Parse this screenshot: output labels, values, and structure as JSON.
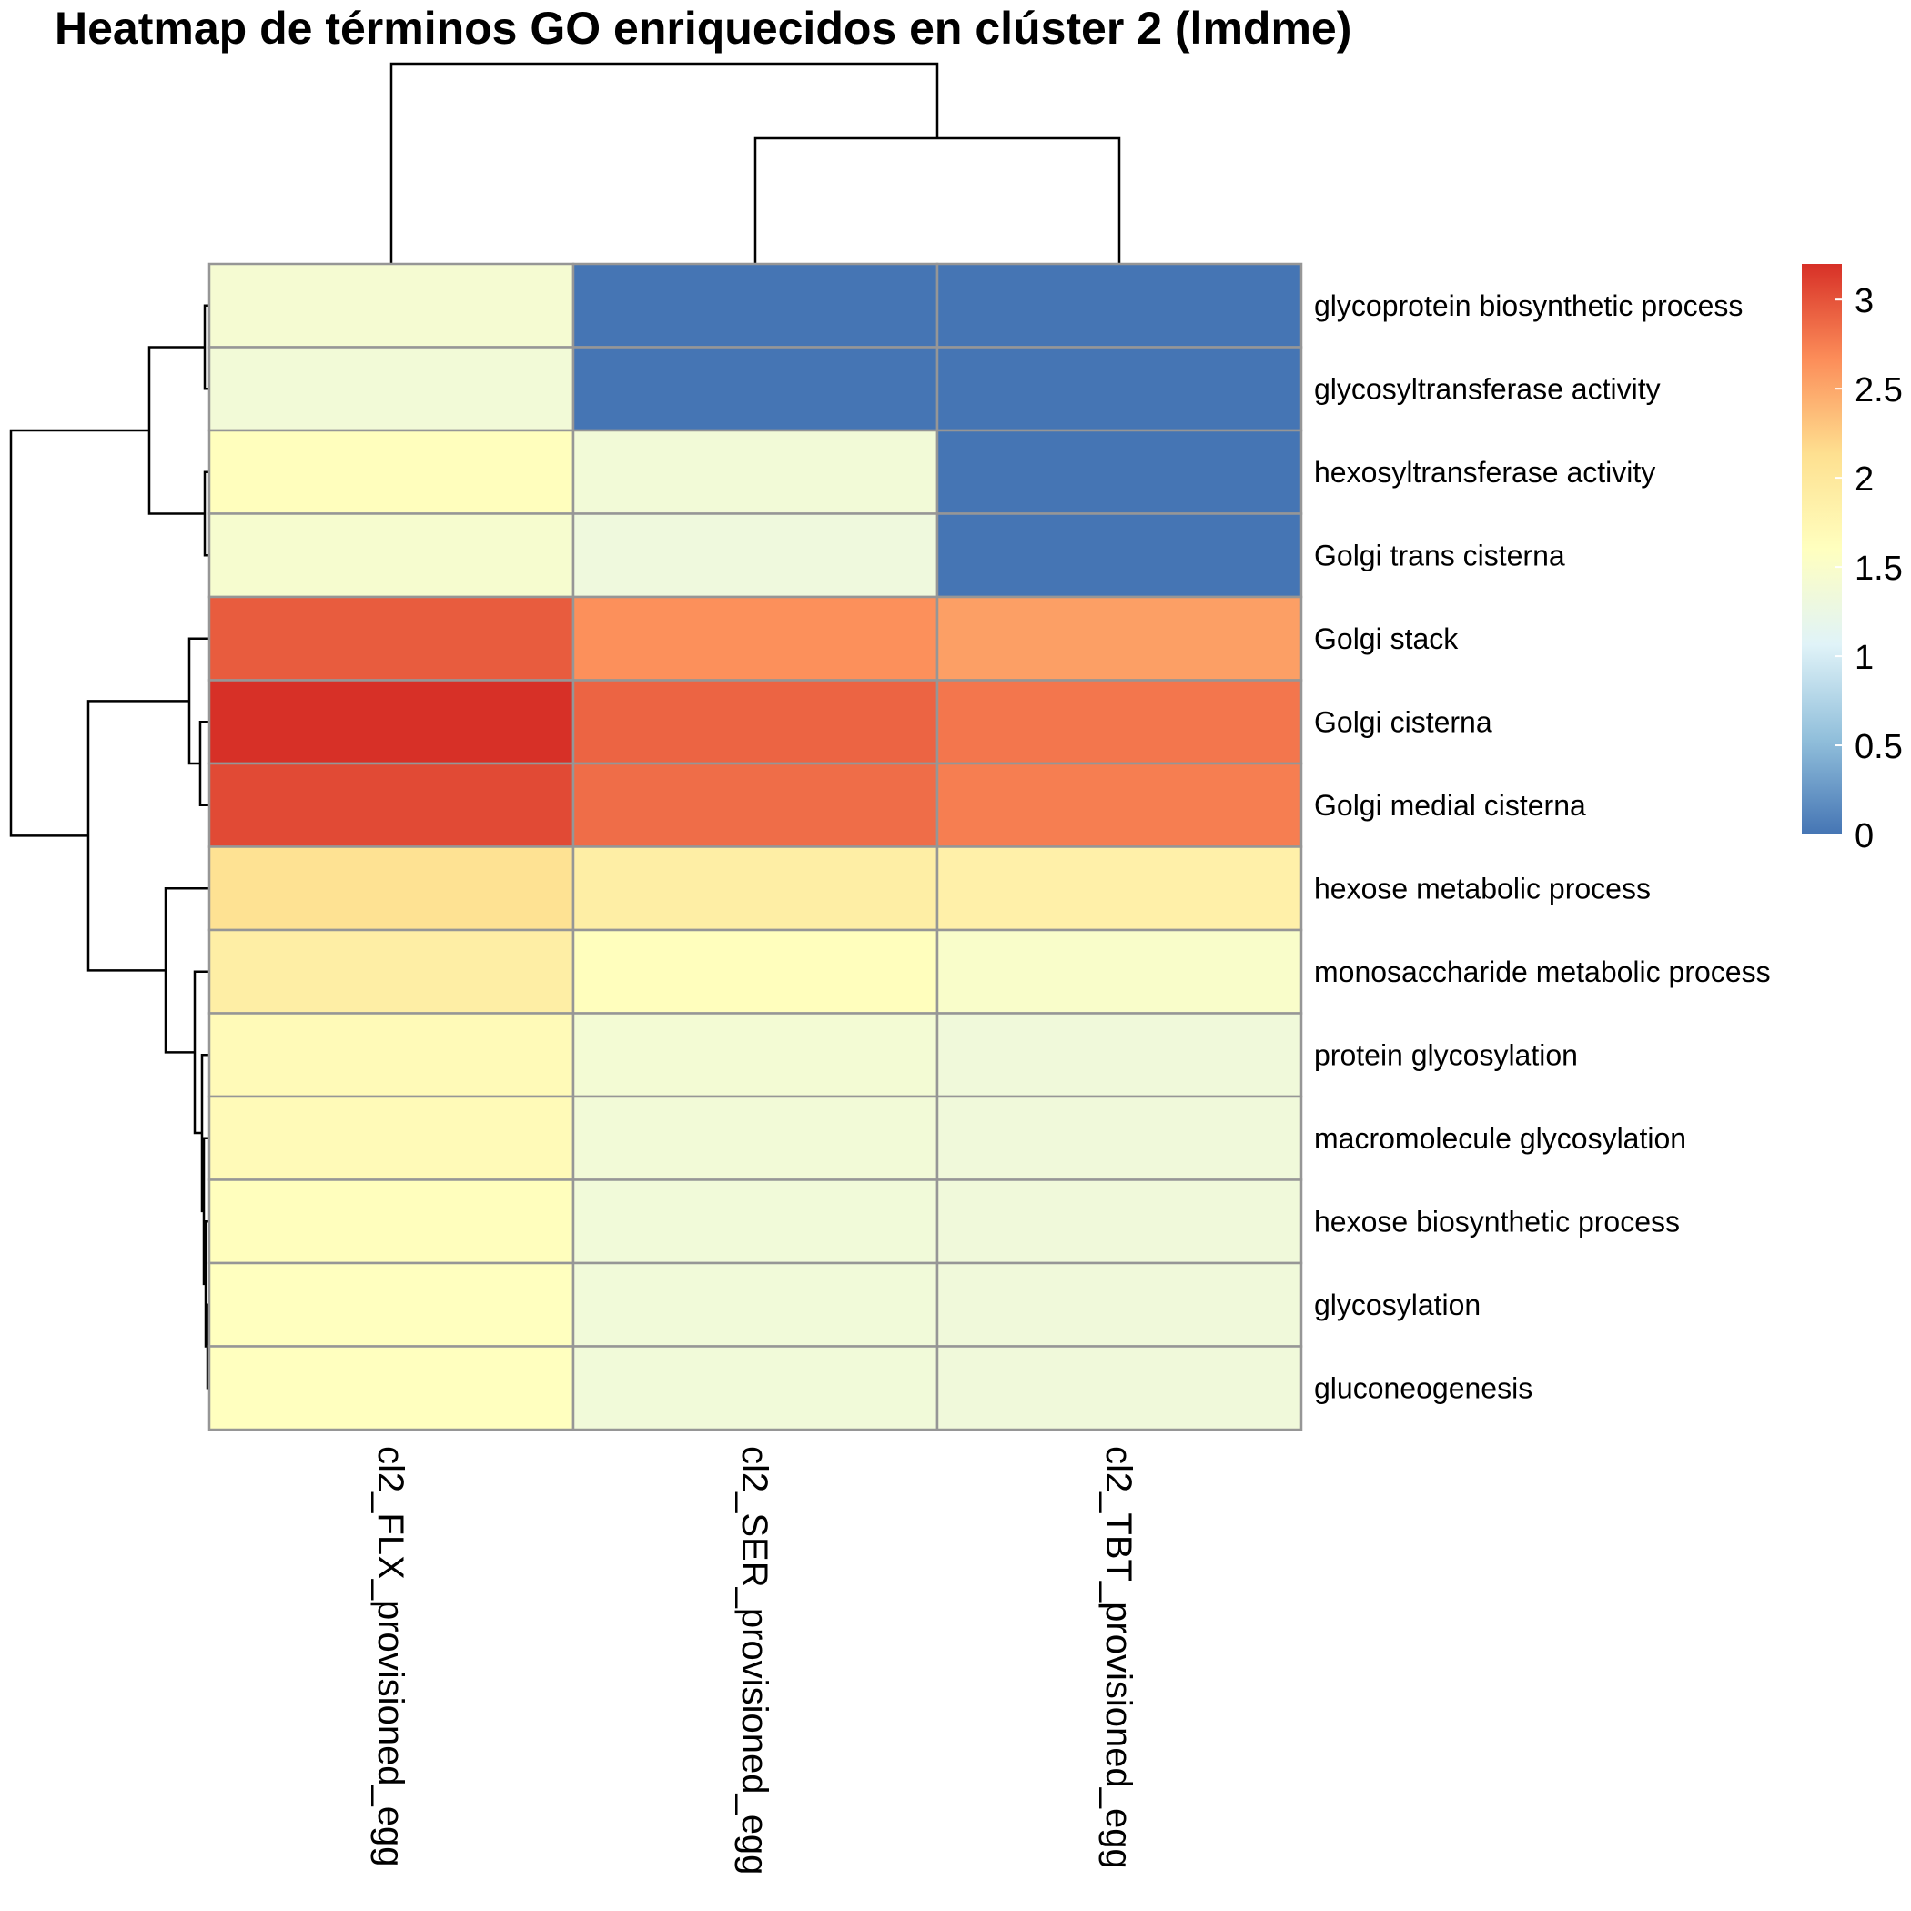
{
  "chart_data": {
    "type": "heatmap",
    "title": "Heatmap de términos GO enriquecidos en clúster 2 (lmdme)",
    "columns": [
      "cl2_FLX_provisioned_egg",
      "cl2_SER_provisioned_egg",
      "cl2_TBT_provisioned_egg"
    ],
    "rows": [
      "glycoprotein biosynthetic process",
      "glycosyltransferase activity",
      "hexosyltransferase activity",
      "Golgi trans cisterna",
      "Golgi stack",
      "Golgi cisterna",
      "Golgi medial cisterna",
      "hexose metabolic process",
      "monosaccharide metabolic process",
      "protein glycosylation",
      "macromolecule glycosylation",
      "hexose biosynthetic process",
      "glycosylation",
      "gluconeogenesis"
    ],
    "values": [
      [
        1.42,
        0.0,
        0.0
      ],
      [
        1.38,
        0.0,
        0.0
      ],
      [
        1.62,
        1.38,
        0.0
      ],
      [
        1.45,
        1.32,
        0.0
      ],
      [
        2.95,
        2.65,
        2.55
      ],
      [
        3.2,
        2.9,
        2.8
      ],
      [
        3.05,
        2.85,
        2.75
      ],
      [
        2.1,
        1.9,
        1.85
      ],
      [
        1.9,
        1.62,
        1.5
      ],
      [
        1.68,
        1.4,
        1.35
      ],
      [
        1.68,
        1.38,
        1.35
      ],
      [
        1.62,
        1.36,
        1.35
      ],
      [
        1.6,
        1.36,
        1.35
      ],
      [
        1.6,
        1.36,
        1.35
      ]
    ],
    "color_scale": {
      "min": 0,
      "max": 3.2,
      "colors": [
        "#4575b4",
        "#91bfdb",
        "#e0f3f8",
        "#ffffbf",
        "#fee090",
        "#fc8d59",
        "#d73027"
      ],
      "ticks": [
        "0",
        "0.5",
        "1",
        "1.5",
        "2",
        "2.5",
        "3"
      ]
    },
    "row_dendrogram": true,
    "column_dendrogram": true,
    "legend_position": "right"
  }
}
